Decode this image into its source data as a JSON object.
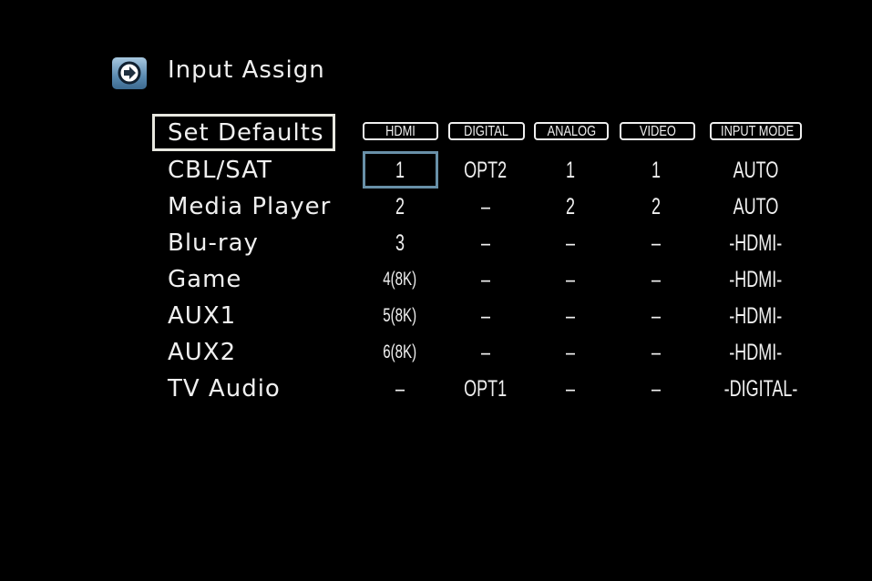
{
  "header": {
    "title": "Input Assign",
    "icon": "arrow-right-circle-icon"
  },
  "set_defaults_label": "Set Defaults",
  "columns": [
    "HDMI",
    "DIGITAL",
    "ANALOG",
    "VIDEO",
    "INPUT MODE"
  ],
  "rows": [
    {
      "label": "CBL/SAT",
      "values": [
        "1",
        "OPT2",
        "1",
        "1",
        "AUTO"
      ]
    },
    {
      "label": "Media Player",
      "values": [
        "2",
        "–",
        "2",
        "2",
        "AUTO"
      ]
    },
    {
      "label": "Blu-ray",
      "values": [
        "3",
        "–",
        "–",
        "–",
        "-HDMI-"
      ]
    },
    {
      "label": "Game",
      "values": [
        "4(8K)",
        "–",
        "–",
        "–",
        "-HDMI-"
      ]
    },
    {
      "label": "AUX1",
      "values": [
        "5(8K)",
        "–",
        "–",
        "–",
        "-HDMI-"
      ]
    },
    {
      "label": "AUX2",
      "values": [
        "6(8K)",
        "–",
        "–",
        "–",
        "-HDMI-"
      ]
    },
    {
      "label": "TV Audio",
      "values": [
        "–",
        "OPT1",
        "–",
        "–",
        "-DIGITAL-"
      ]
    }
  ],
  "selected": {
    "row": "CBL/SAT",
    "column": "HDMI"
  },
  "colors": {
    "selection": "#6890a8",
    "background": "#000000",
    "text": "#f0f0f0"
  }
}
